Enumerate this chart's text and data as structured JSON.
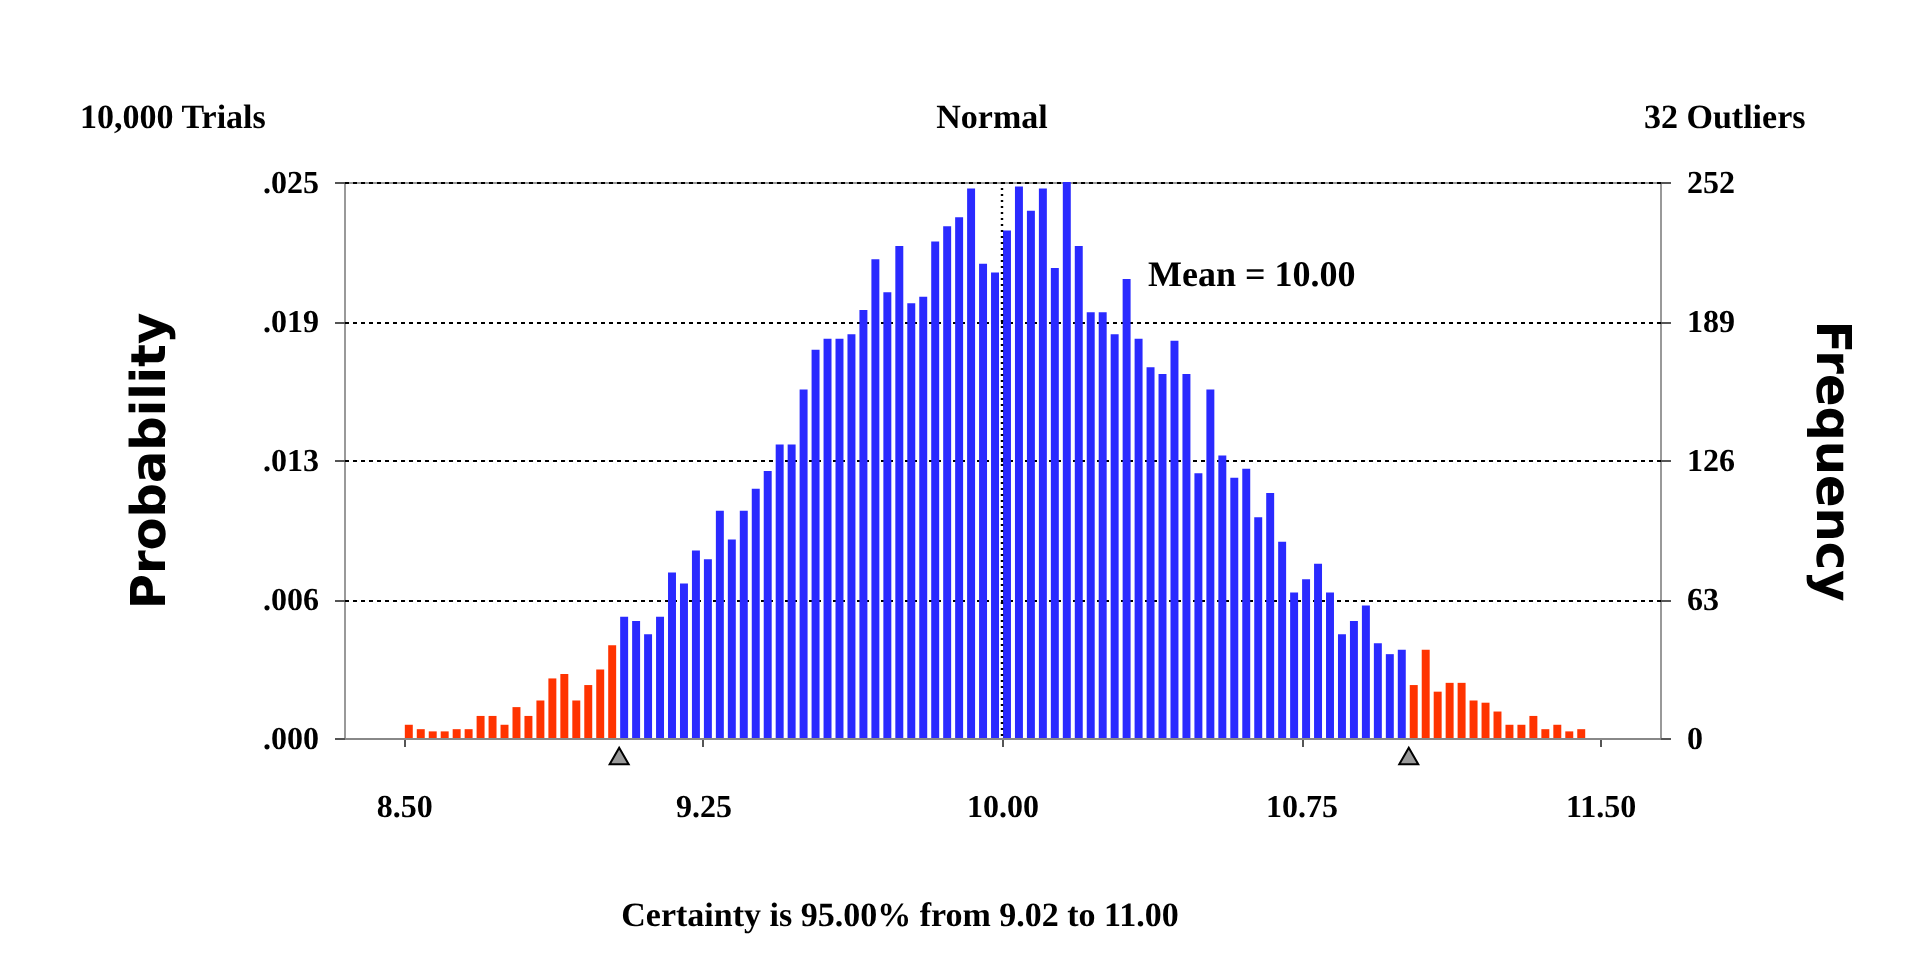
{
  "chart_data": {
    "type": "histogram",
    "title": "Normal",
    "ylabel": "Probability",
    "y2label": "Frequency",
    "annotations": [
      "10,000 Trials",
      "32 Outliers",
      "Certainty is 95.00% from 9.02 to 11.00"
    ],
    "bins": [
      8.5,
      8.53,
      8.56,
      8.59,
      8.62,
      8.65,
      8.68,
      8.71,
      8.74,
      8.77,
      8.8,
      8.83,
      8.86,
      8.89,
      8.92,
      8.95,
      8.98,
      9.01,
      9.04,
      9.07,
      9.1,
      9.13,
      9.16,
      9.19,
      9.22,
      9.25,
      9.28,
      9.31,
      9.34,
      9.37,
      9.4,
      9.43,
      9.46,
      9.49,
      9.52,
      9.55,
      9.58,
      9.61,
      9.64,
      9.67,
      9.7,
      9.73,
      9.76,
      9.79,
      9.82,
      9.85,
      9.88,
      9.91,
      9.94,
      9.97,
      10.0,
      10.03,
      10.06,
      10.09,
      10.12,
      10.15,
      10.18,
      10.21,
      10.24,
      10.27,
      10.3,
      10.33,
      10.36,
      10.39,
      10.42,
      10.45,
      10.48,
      10.51,
      10.54,
      10.57,
      10.6,
      10.63,
      10.66,
      10.69,
      10.72,
      10.75,
      10.78,
      10.81,
      10.84,
      10.87,
      10.9,
      10.93,
      10.96,
      10.99,
      11.02,
      11.05,
      11.08,
      11.11,
      11.14,
      11.17,
      11.2,
      11.23,
      11.26,
      11.29,
      11.32,
      11.35,
      11.38,
      11.41,
      11.44,
      11.47,
      11.5
    ],
    "series": [
      {
        "axis": "y2",
        "values": [
          6,
          4,
          3,
          3,
          4,
          4,
          10,
          10,
          6,
          14,
          10,
          17,
          27,
          29,
          17,
          24,
          31,
          42,
          55,
          53,
          47,
          55,
          75,
          70,
          85,
          81,
          103,
          90,
          103,
          113,
          121,
          133,
          133,
          158,
          176,
          181,
          181,
          183,
          194,
          217,
          202,
          223,
          197,
          200,
          225,
          232,
          236,
          249,
          215,
          211,
          230,
          250,
          239,
          249,
          213,
          252,
          223,
          193,
          193,
          183,
          208,
          181,
          168,
          165,
          180,
          165,
          120,
          158,
          128,
          118,
          122,
          100,
          111,
          89,
          66,
          72,
          79,
          66,
          47,
          53,
          60,
          43,
          38,
          40,
          24,
          40,
          21,
          25,
          25,
          17,
          16,
          12,
          6,
          6,
          10,
          4,
          6,
          3,
          4,
          0
        ],
        "colors": [
          "#ff3300",
          "#ff3300",
          "#ff3300",
          "#ff3300",
          "#ff3300",
          "#ff3300",
          "#ff3300",
          "#ff3300",
          "#ff3300",
          "#ff3300",
          "#ff3300",
          "#ff3300",
          "#ff3300",
          "#ff3300",
          "#ff3300",
          "#ff3300",
          "#ff3300",
          "#ff3300",
          "#2a2aff",
          "#2a2aff",
          "#2a2aff",
          "#2a2aff",
          "#2a2aff",
          "#2a2aff",
          "#2a2aff",
          "#2a2aff",
          "#2a2aff",
          "#2a2aff",
          "#2a2aff",
          "#2a2aff",
          "#2a2aff",
          "#2a2aff",
          "#2a2aff",
          "#2a2aff",
          "#2a2aff",
          "#2a2aff",
          "#2a2aff",
          "#2a2aff",
          "#2a2aff",
          "#2a2aff",
          "#2a2aff",
          "#2a2aff",
          "#2a2aff",
          "#2a2aff",
          "#2a2aff",
          "#2a2aff",
          "#2a2aff",
          "#2a2aff",
          "#2a2aff",
          "#2a2aff",
          "#2a2aff",
          "#2a2aff",
          "#2a2aff",
          "#2a2aff",
          "#2a2aff",
          "#2a2aff",
          "#2a2aff",
          "#2a2aff",
          "#2a2aff",
          "#2a2aff",
          "#2a2aff",
          "#2a2aff",
          "#2a2aff",
          "#2a2aff",
          "#2a2aff",
          "#2a2aff",
          "#2a2aff",
          "#2a2aff",
          "#2a2aff",
          "#2a2aff",
          "#2a2aff",
          "#2a2aff",
          "#2a2aff",
          "#2a2aff",
          "#2a2aff",
          "#2a2aff",
          "#2a2aff",
          "#2a2aff",
          "#2a2aff",
          "#2a2aff",
          "#2a2aff",
          "#2a2aff",
          "#2a2aff",
          "#2a2aff",
          "#ff3300",
          "#ff3300",
          "#ff3300",
          "#ff3300",
          "#ff3300",
          "#ff3300",
          "#ff3300",
          "#ff3300",
          "#ff3300",
          "#ff3300",
          "#ff3300",
          "#ff3300",
          "#ff3300",
          "#ff3300",
          "#ff3300",
          "#ff3300"
        ]
      }
    ],
    "xlim": [
      8.35,
      11.65
    ],
    "xticks": [
      {
        "value": 8.5,
        "label": "8.50"
      },
      {
        "value": 9.25,
        "label": "9.25"
      },
      {
        "value": 10.0,
        "label": "10.00"
      },
      {
        "value": 10.75,
        "label": "10.75"
      },
      {
        "value": 11.5,
        "label": "11.50"
      }
    ],
    "ylim": [
      0,
      0.0252
    ],
    "yticks": [
      {
        "value": 0,
        "label": ".000"
      },
      {
        "value": 0.0063,
        "label": ".006"
      },
      {
        "value": 0.0126,
        "label": ".013"
      },
      {
        "value": 0.0189,
        "label": ".019"
      },
      {
        "value": 0.0252,
        "label": ".025"
      }
    ],
    "y2lim": [
      0,
      252
    ],
    "y2ticks": [
      0,
      63,
      126,
      189,
      252
    ],
    "grid": "y",
    "ref_lines": [
      {
        "axis": "x",
        "value": 10.0,
        "label": "Mean = 10.00",
        "line_style": "dotted"
      }
    ]
  }
}
